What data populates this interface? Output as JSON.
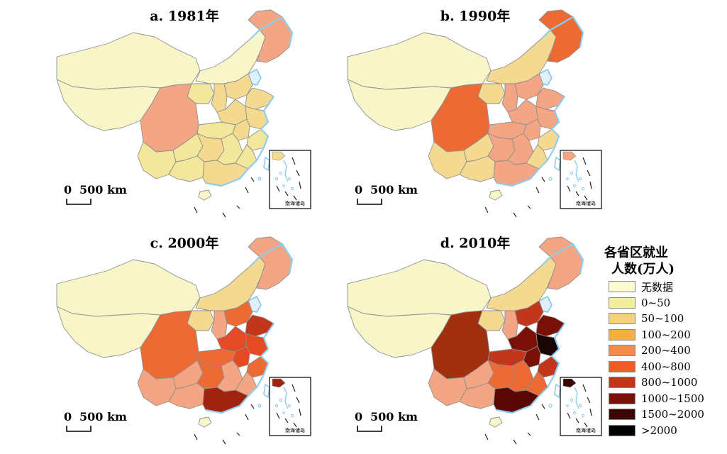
{
  "panels": [
    {
      "id": "a",
      "title": "a. 1981年",
      "fills": {
        "nw": "#f8f6c9",
        "tibet": "#f8f6c9",
        "inner_mongolia": "#f8f6c9",
        "ningxia": "#f2e79a",
        "northeast": "#f4a583",
        "shanxi": "#f4da90",
        "hebei": "#f4da90",
        "shandong": "#f4da90",
        "henan": "#f4da90",
        "jiangsu": "#f4da90",
        "anhui": "#f4da90",
        "hubei": "#f2e79a",
        "zhejiang": "#f2e79a",
        "sichuan": "#f4a583",
        "yunnan": "#f2e79a",
        "guizhou": "#f2e79a",
        "hunan": "#f4da90",
        "jiangxi": "#f2e79a",
        "fujian": "#f2e79a",
        "guangxi": "#f2e79a",
        "guangdong": "#f4da90",
        "hainan": "#f8f6c9"
      },
      "inset_fill": "#f4da90"
    },
    {
      "id": "b",
      "title": "b. 1990年",
      "fills": {
        "nw": "#f8f6c9",
        "tibet": "#f8f6c9",
        "inner_mongolia": "#f4da90",
        "ningxia": "#f4da90",
        "northeast": "#ee6a35",
        "shanxi": "#f4a583",
        "hebei": "#f4a583",
        "shandong": "#f4a583",
        "henan": "#f4a583",
        "jiangsu": "#f4a583",
        "anhui": "#f4a583",
        "hubei": "#f4a583",
        "zhejiang": "#f4da90",
        "sichuan": "#ee6a35",
        "yunnan": "#f4da90",
        "guizhou": "#f4da90",
        "hunan": "#f4a583",
        "jiangxi": "#f4a583",
        "fujian": "#f4da90",
        "guangxi": "#f4da90",
        "guangdong": "#f4a583",
        "hainan": "#f8f6c9"
      },
      "inset_fill": "#f4a583"
    },
    {
      "id": "c",
      "title": "c. 2000年",
      "fills": {
        "nw": "#f8f6c9",
        "tibet": "#f8f6c9",
        "inner_mongolia": "#f4da90",
        "ningxia": "#f4da90",
        "northeast": "#f4a583",
        "shanxi": "#f4a583",
        "hebei": "#ee6a35",
        "shandong": "#c2361c",
        "henan": "#e44a24",
        "jiangsu": "#e44a24",
        "anhui": "#e44a24",
        "hubei": "#ee6a35",
        "zhejiang": "#ee6a35",
        "sichuan": "#ee6a35",
        "yunnan": "#f4a583",
        "guizhou": "#f4a583",
        "hunan": "#ee6a35",
        "jiangxi": "#f4a583",
        "fujian": "#f4a583",
        "guangxi": "#f4a583",
        "guangdong": "#a0230f",
        "hainan": "#f8f6c9"
      },
      "inset_fill": "#a0230f"
    },
    {
      "id": "d",
      "title": "d. 2010年",
      "fills": {
        "nw": "#f8f6c9",
        "tibet": "#f8f6c9",
        "inner_mongolia": "#f4da90",
        "ningxia": "#f4da90",
        "northeast": "#f4a583",
        "shanxi": "#f4a583",
        "hebei": "#c2361c",
        "shandong": "#7a1108",
        "henan": "#7a1108",
        "jiangsu": "#1a0502",
        "anhui": "#7a1108",
        "hubei": "#c2361c",
        "zhejiang": "#c2361c",
        "sichuan": "#a0300f",
        "yunnan": "#f4a583",
        "guizhou": "#f4a583",
        "hunan": "#ee6a35",
        "jiangxi": "#ee6a35",
        "fujian": "#ee6a35",
        "guangxi": "#f4a583",
        "guangdong": "#5a0804",
        "hainan": "#f8f6c9"
      },
      "inset_fill": "#3a0502"
    }
  ],
  "scale_bar": {
    "zero": "0",
    "value": "500 km"
  },
  "inset_label": "南海诸岛",
  "legend": {
    "title_line1": "各省区就业",
    "title_line2": "人数(万人)",
    "items": [
      {
        "label": "无数据",
        "color": "#fbfbd2"
      },
      {
        "label": "0~50",
        "color": "#f2ee9e"
      },
      {
        "label": "50~100",
        "color": "#f2d27a"
      },
      {
        "label": "100~200",
        "color": "#f4ae45"
      },
      {
        "label": "200~400",
        "color": "#f48b4d"
      },
      {
        "label": "400~800",
        "color": "#ee5d25"
      },
      {
        "label": "800~1000",
        "color": "#c2361c"
      },
      {
        "label": "1000~1500",
        "color": "#7a1108"
      },
      {
        "label": "1500~2000",
        "color": "#3a0502"
      },
      {
        "label": ">2000",
        "color": "#000000"
      }
    ]
  }
}
